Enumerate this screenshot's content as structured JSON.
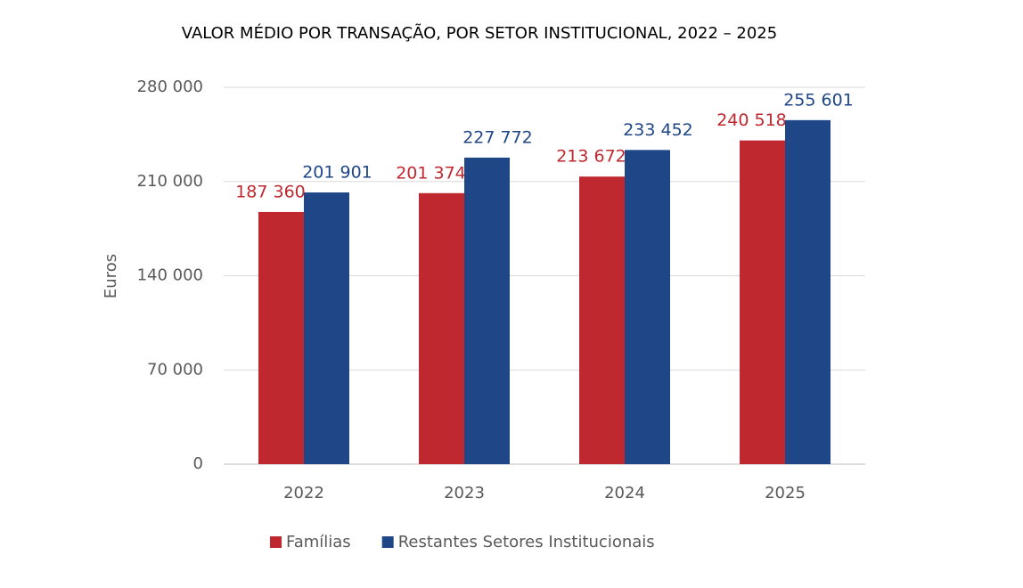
{
  "chart_data": {
    "type": "bar",
    "title": "VALOR MÉDIO POR TRANSAÇÃO, POR SETOR INSTITUCIONAL, 2022 – 2025",
    "y_label": "Euros",
    "categories": [
      "2022",
      "2023",
      "2024",
      "2025"
    ],
    "series": [
      {
        "name": "Famílias",
        "color": "#c0282f",
        "values": [
          187360,
          201374,
          213672,
          240518
        ],
        "value_labels": [
          "187 360",
          "201 374",
          "213 672",
          "240 518"
        ]
      },
      {
        "name": "Restantes Setores Institucionais",
        "color": "#1f4788",
        "values": [
          201901,
          227772,
          233452,
          255601
        ],
        "value_labels": [
          "201 901",
          "227 772",
          "233 452",
          "255 601"
        ]
      }
    ],
    "ylim": [
      0,
      280000
    ],
    "yticks": [
      0,
      {
        "value": 70000,
        "label": "70 000"
      },
      {
        "value": 140000,
        "label": "140 000"
      },
      {
        "value": 210000,
        "label": "210 000"
      },
      {
        "value": 280000,
        "label": "280 000"
      }
    ],
    "grid": true
  }
}
